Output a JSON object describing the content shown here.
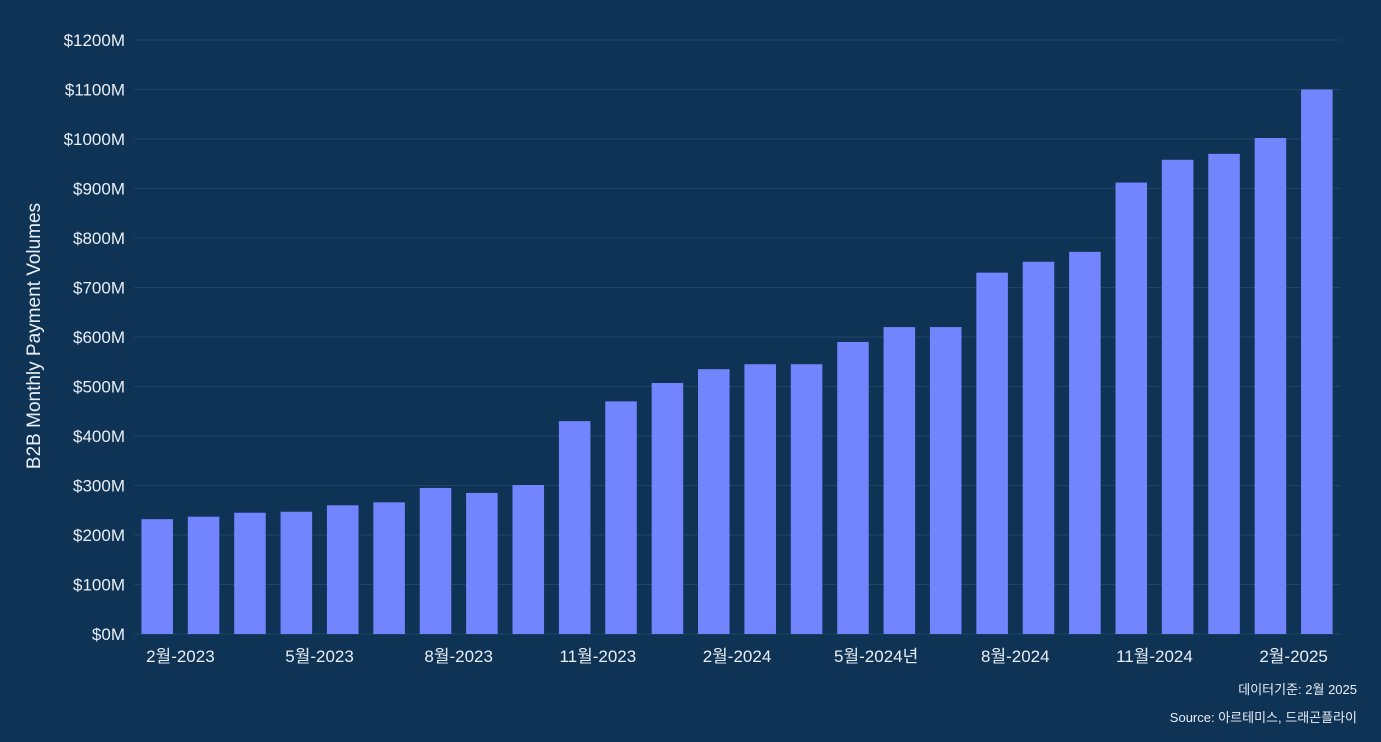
{
  "chart_data": {
    "type": "bar",
    "title": "",
    "xlabel": "",
    "ylabel": "B2B Monthly Payment Volumes",
    "ylim": [
      0,
      1200
    ],
    "y_ticks": [
      0,
      100,
      200,
      300,
      400,
      500,
      600,
      700,
      800,
      900,
      1000,
      1100,
      1200
    ],
    "y_tick_labels": [
      "$0M",
      "$100M",
      "$200M",
      "$300M",
      "$400M",
      "$500M",
      "$600M",
      "$700M",
      "$800M",
      "$900M",
      "$1000M",
      "$1100M",
      "$1200M"
    ],
    "x_tick_labels": [
      {
        "index": 1,
        "label": "2월-2023"
      },
      {
        "index": 4,
        "label": "5월-2023"
      },
      {
        "index": 7,
        "label": "8월-2023"
      },
      {
        "index": 10,
        "label": "11월-2023"
      },
      {
        "index": 13,
        "label": "2월-2024"
      },
      {
        "index": 16,
        "label": "5월-2024년"
      },
      {
        "index": 19,
        "label": "8월-2024"
      },
      {
        "index": 22,
        "label": "11월-2024"
      },
      {
        "index": 25,
        "label": "2월-2025"
      }
    ],
    "values": [
      232,
      237,
      245,
      247,
      260,
      266,
      295,
      285,
      301,
      430,
      470,
      507,
      535,
      545,
      545,
      590,
      620,
      620,
      730,
      752,
      772,
      912,
      958,
      970,
      1002,
      1100
    ],
    "grid": true,
    "legend": "none",
    "colors": {
      "background": "#0f3355",
      "bar": "#7285ff",
      "grid": "#1f4467",
      "text": "#e8eef5"
    }
  },
  "footnotes": {
    "data_date": "데이터기준:  2월 2025",
    "source": "Source: 아르테미스, 드래곤플라이"
  }
}
